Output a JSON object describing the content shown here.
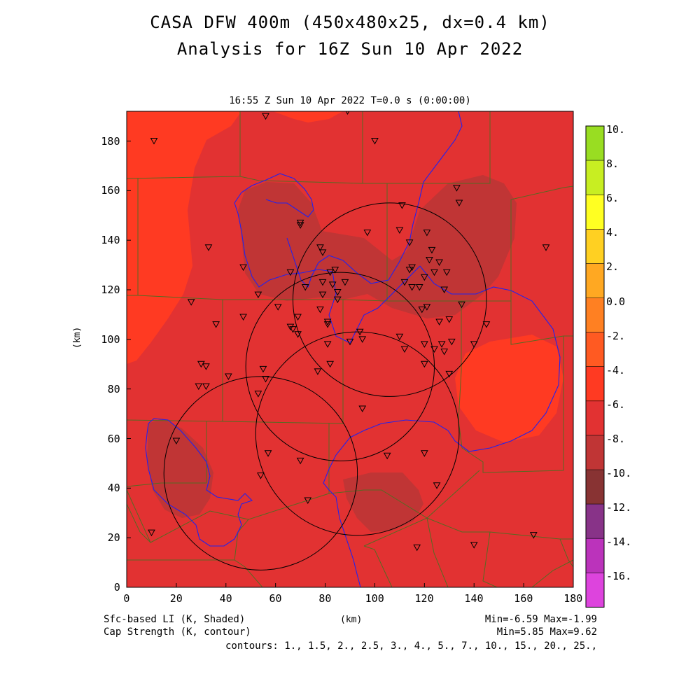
{
  "title_line1": "CASA DFW 400m (450x480x25, dx=0.4 km)",
  "title_line2": "Analysis for 16Z Sun 10 Apr 2022",
  "subtitle": "16:55 Z Sun 10 Apr 2022    T=0.0 s (0:00:00)",
  "axes": {
    "xlabel": "(km)",
    "ylabel": "(km)",
    "xticks": [
      "0",
      "20",
      "40",
      "60",
      "80",
      "100",
      "120",
      "140",
      "160",
      "180"
    ],
    "yticks": [
      "0",
      "20",
      "40",
      "60",
      "80",
      "100",
      "120",
      "140",
      "160",
      "180"
    ],
    "xlim": [
      0,
      180
    ],
    "ylim": [
      0,
      192
    ]
  },
  "colorbar": {
    "labels": [
      "10.",
      "8.",
      "6.",
      "4.",
      "2.",
      "0.0",
      "-2.",
      "-4.",
      "-6.",
      "-8.",
      "-10.",
      "-12.",
      "-14.",
      "-16."
    ],
    "colors": [
      "#99dd22",
      "#c8ee22",
      "#ffff22",
      "#ffd022",
      "#ffa822",
      "#ff8022",
      "#ff5a22",
      "#ff3a22",
      "#e23232",
      "#c03535",
      "#883333",
      "#883388",
      "#bb33bb",
      "#dd44dd"
    ]
  },
  "field_colors": {
    "main": "#e23232",
    "warm": "#ff3a22",
    "cold": "#c03535",
    "river": "#2222ee",
    "county": "#556b22",
    "circle": "#000000"
  },
  "footer": {
    "left1": "Sfc-based LI (K, Shaded)",
    "left2": "Cap Strength (K, contour)",
    "center": "(km)",
    "right1": "Min=-6.59 Max=-1.99",
    "right2": "Min=5.85 Max=9.62",
    "contours": "contours: 1., 1.5, 2., 2.5, 3., 4., 5., 7., 10., 15., 20., 25.,"
  },
  "radar_circles_km": [
    {
      "x": 106,
      "y": 116,
      "r": 39
    },
    {
      "x": 86,
      "y": 89,
      "r": 38
    },
    {
      "x": 93,
      "y": 62,
      "r": 41
    },
    {
      "x": 54,
      "y": 46,
      "r": 39
    }
  ],
  "stations_km": [
    [
      11,
      180
    ],
    [
      56,
      190
    ],
    [
      89,
      192
    ],
    [
      100,
      180
    ],
    [
      33,
      137
    ],
    [
      70,
      146
    ],
    [
      70,
      147
    ],
    [
      78,
      137
    ],
    [
      79,
      135
    ],
    [
      97,
      143
    ],
    [
      111,
      154
    ],
    [
      110,
      144
    ],
    [
      114,
      139
    ],
    [
      121,
      143
    ],
    [
      133,
      161
    ],
    [
      134,
      155
    ],
    [
      47,
      129
    ],
    [
      66,
      127
    ],
    [
      72,
      121
    ],
    [
      79,
      123
    ],
    [
      82,
      127
    ],
    [
      84,
      128
    ],
    [
      83,
      122
    ],
    [
      88,
      123
    ],
    [
      79,
      118
    ],
    [
      85,
      119
    ],
    [
      85,
      116
    ],
    [
      53,
      118
    ],
    [
      61,
      113
    ],
    [
      69,
      109
    ],
    [
      78,
      112
    ],
    [
      26,
      115
    ],
    [
      36,
      106
    ],
    [
      47,
      109
    ],
    [
      66,
      105
    ],
    [
      67,
      104
    ],
    [
      69,
      102
    ],
    [
      81,
      107
    ],
    [
      81,
      106
    ],
    [
      94,
      103
    ],
    [
      95,
      100
    ],
    [
      90,
      99
    ],
    [
      81,
      98
    ],
    [
      82,
      90
    ],
    [
      110,
      101
    ],
    [
      30,
      90
    ],
    [
      32,
      89
    ],
    [
      29,
      81
    ],
    [
      32,
      81
    ],
    [
      41,
      85
    ],
    [
      55,
      88
    ],
    [
      56,
      84
    ],
    [
      53,
      78
    ],
    [
      77,
      87
    ],
    [
      95,
      72
    ],
    [
      114,
      128
    ],
    [
      115,
      129
    ],
    [
      118,
      121
    ],
    [
      120,
      125
    ],
    [
      122,
      132
    ],
    [
      123,
      136
    ],
    [
      124,
      127
    ],
    [
      126,
      131
    ],
    [
      129,
      127
    ],
    [
      128,
      120
    ],
    [
      135,
      114
    ],
    [
      145,
      106
    ],
    [
      119,
      112
    ],
    [
      121,
      113
    ],
    [
      126,
      107
    ],
    [
      130,
      108
    ],
    [
      112,
      96
    ],
    [
      120,
      98
    ],
    [
      120,
      90
    ],
    [
      124,
      96
    ],
    [
      127,
      98
    ],
    [
      128,
      95
    ],
    [
      131,
      99
    ],
    [
      130,
      86
    ],
    [
      140,
      98
    ],
    [
      112,
      123
    ],
    [
      115,
      121
    ],
    [
      20,
      59
    ],
    [
      57,
      54
    ],
    [
      70,
      51
    ],
    [
      105,
      53
    ],
    [
      120,
      54
    ],
    [
      54,
      45
    ],
    [
      73,
      35
    ],
    [
      125,
      41
    ],
    [
      10,
      22
    ],
    [
      117,
      16
    ],
    [
      140,
      17
    ],
    [
      164,
      21
    ],
    [
      169,
      137
    ]
  ]
}
